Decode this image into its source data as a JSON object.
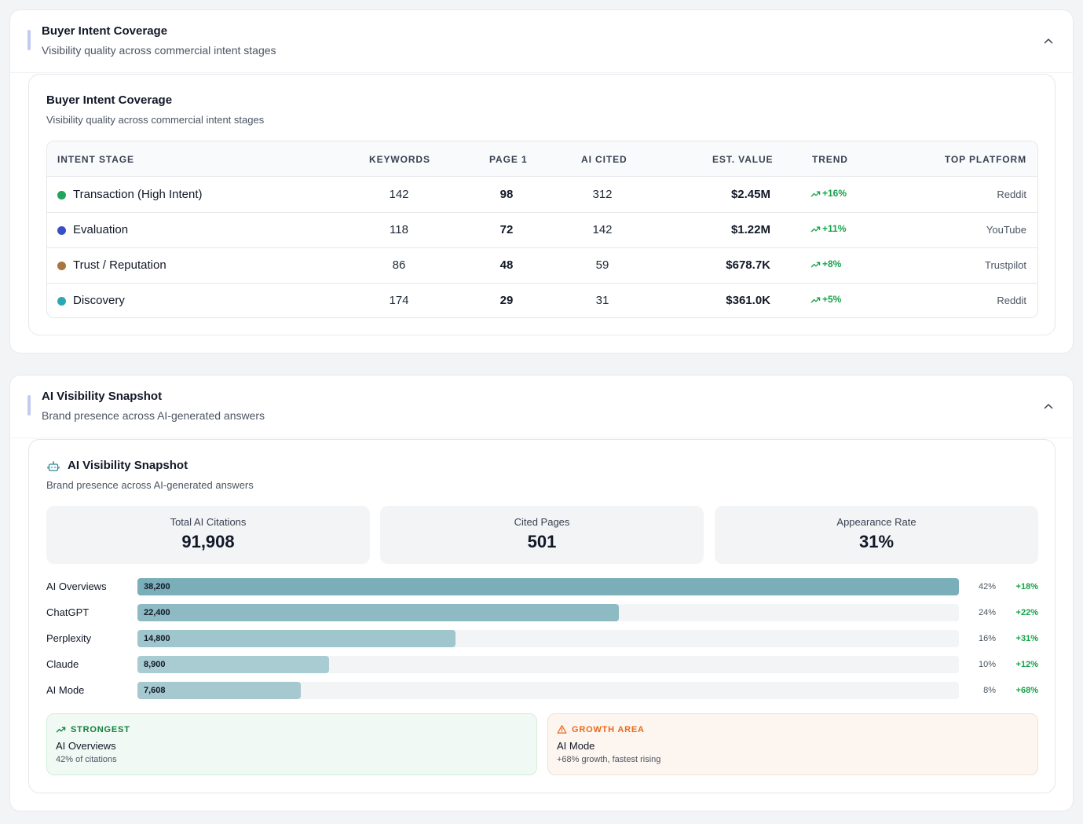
{
  "intent_panel": {
    "title": "Buyer Intent Coverage",
    "subtitle": "Visibility quality across commercial intent stages",
    "card_title": "Buyer Intent Coverage",
    "card_subtitle": "Visibility quality across commercial intent stages",
    "columns": [
      "INTENT STAGE",
      "KEYWORDS",
      "PAGE 1",
      "AI CITED",
      "EST. VALUE",
      "TREND",
      "TOP PLATFORM"
    ],
    "rows": [
      {
        "stage": "Transaction (High Intent)",
        "dot_color": "#22a55b",
        "keywords": "142",
        "page1": "98",
        "ai_cited": "312",
        "est_value": "$2.45M",
        "trend": "+16%",
        "top_platform": "Reddit"
      },
      {
        "stage": "Evaluation",
        "dot_color": "#3b4fc4",
        "keywords": "118",
        "page1": "72",
        "ai_cited": "142",
        "est_value": "$1.22M",
        "trend": "+11%",
        "top_platform": "YouTube"
      },
      {
        "stage": "Trust / Reputation",
        "dot_color": "#a87442",
        "keywords": "86",
        "page1": "48",
        "ai_cited": "59",
        "est_value": "$678.7K",
        "trend": "+8%",
        "top_platform": "Trustpilot"
      },
      {
        "stage": "Discovery",
        "dot_color": "#2ba7b3",
        "keywords": "174",
        "page1": "29",
        "ai_cited": "31",
        "est_value": "$361.0K",
        "trend": "+5%",
        "top_platform": "Reddit"
      }
    ]
  },
  "ai_panel": {
    "title": "AI Visibility Snapshot",
    "subtitle": "Brand presence across AI-generated answers",
    "card_title": "AI Visibility Snapshot",
    "card_subtitle": "Brand presence across AI-generated answers",
    "card_icon": "robot-icon",
    "stats": [
      {
        "label": "Total AI Citations",
        "value": "91,908"
      },
      {
        "label": "Cited Pages",
        "value": "501"
      },
      {
        "label": "Appearance Rate",
        "value": "31%"
      }
    ],
    "bars": [
      {
        "name": "AI Overviews",
        "value": 38200,
        "value_label": "38,200",
        "share": "42%",
        "growth": "+18%",
        "color": "#7aaeb8"
      },
      {
        "name": "ChatGPT",
        "value": 22400,
        "value_label": "22,400",
        "share": "24%",
        "growth": "+22%",
        "color": "#8dbac3"
      },
      {
        "name": "Perplexity",
        "value": 14800,
        "value_label": "14,800",
        "share": "16%",
        "growth": "+31%",
        "color": "#a0c6cd"
      },
      {
        "name": "Claude",
        "value": 8900,
        "value_label": "8,900",
        "share": "10%",
        "growth": "+12%",
        "color": "#a9cbd2"
      },
      {
        "name": "AI Mode",
        "value": 7608,
        "value_label": "7,608",
        "share": "8%",
        "growth": "+68%",
        "color": "#a6c9cf"
      }
    ],
    "bar_max": 38200,
    "strongest": {
      "tag": "STRONGEST",
      "title": "AI Overviews",
      "subtitle": "42% of citations",
      "color": "#15803d"
    },
    "growth_area": {
      "tag": "GROWTH AREA",
      "title": "AI Mode",
      "subtitle": "+68% growth, fastest rising",
      "color": "#ea6a1c"
    }
  }
}
